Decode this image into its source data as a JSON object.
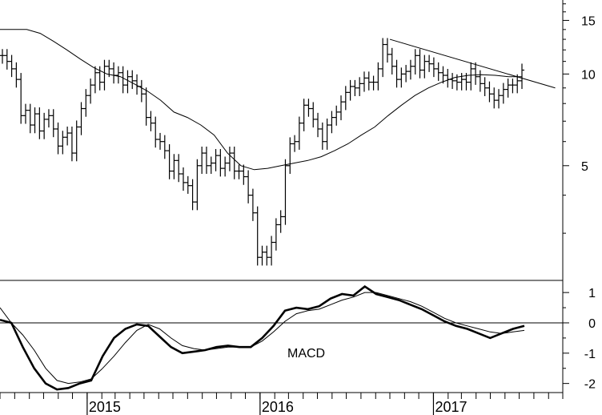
{
  "chart_data": [
    {
      "type": "ohlc",
      "panel": "price",
      "scale": "log",
      "ylim": [
        2.1,
        17.5
      ],
      "yticks": [
        5,
        10,
        15
      ],
      "ytick_labels": [
        "5",
        "10",
        "15"
      ],
      "xlim": [
        "2014-07-01",
        "2017-10-01"
      ],
      "xticks": [
        "2015-01-01",
        "2016-01-01",
        "2017-01-01"
      ],
      "xtick_labels": [
        "2015",
        "2016",
        "2017"
      ],
      "closes": [
        11.5,
        11.0,
        10.4,
        9.6,
        7.3,
        7.6,
        6.8,
        7.4,
        6.5,
        7.1,
        7.3,
        6.6,
        5.8,
        6.2,
        6.4,
        5.5,
        6.7,
        7.7,
        8.5,
        9.2,
        10.1,
        9.4,
        10.6,
        10.4,
        9.9,
        10.1,
        9.2,
        9.8,
        9.5,
        9.1,
        8.6,
        7.2,
        6.9,
        6.1,
        6.0,
        5.6,
        4.8,
        5.2,
        4.7,
        4.4,
        4.3,
        3.8,
        5.0,
        5.5,
        5.0,
        5.1,
        5.4,
        4.9,
        5.1,
        5.5,
        4.8,
        4.8,
        4.6,
        4.0,
        3.5,
        2.5,
        2.6,
        2.5,
        2.8,
        3.2,
        3.4,
        5.0,
        5.9,
        6.0,
        6.9,
        7.9,
        7.7,
        7.1,
        6.6,
        6.0,
        6.8,
        7.2,
        7.5,
        8.1,
        8.7,
        9.1,
        9.0,
        9.3,
        9.7,
        9.4,
        9.4,
        10.4,
        12.5,
        11.6,
        10.6,
        9.6,
        10.0,
        10.2,
        10.6,
        11.5,
        10.3,
        11.0,
        10.8,
        10.4,
        10.1,
        9.9,
        9.6,
        9.5,
        9.4,
        9.6,
        9.4,
        10.4,
        9.8,
        9.3,
        9.0,
        8.6,
        8.2,
        8.5,
        8.9,
        9.2,
        9.2,
        9.5,
        10.3
      ],
      "ma": [
        14.0,
        14.0,
        14.0,
        13.6,
        12.8,
        12.0,
        11.2,
        10.5,
        10.0,
        9.8,
        9.3,
        8.8,
        8.2,
        7.5,
        7.2,
        6.8,
        6.3,
        5.5,
        5.0,
        4.85,
        4.9,
        5.0,
        5.1,
        5.2,
        5.35,
        5.6,
        5.9,
        6.3,
        6.7,
        7.3,
        7.9,
        8.5,
        9.0,
        9.4,
        9.75,
        9.9,
        9.95,
        9.9,
        9.8,
        9.8
      ],
      "trendline": {
        "start": [
          "2016-10-01",
          13.0
        ],
        "end": [
          "2017-09-15",
          9.0
        ]
      }
    },
    {
      "type": "line",
      "panel": "macd",
      "label": "MACD",
      "ylim": [
        -2.3,
        1.4
      ],
      "yticks": [
        -2,
        -1,
        0,
        1
      ],
      "ytick_labels": [
        "-2",
        "-1",
        "0",
        "1"
      ],
      "series": [
        {
          "style": "thick",
          "values": [
            0.1,
            0.0,
            -0.8,
            -1.5,
            -2.0,
            -2.2,
            -2.15,
            -2.0,
            -1.9,
            -1.1,
            -0.5,
            -0.2,
            -0.05,
            -0.1,
            -0.45,
            -0.8,
            -1.0,
            -0.95,
            -0.9,
            -0.8,
            -0.75,
            -0.8,
            -0.8,
            -0.5,
            -0.1,
            0.4,
            0.5,
            0.45,
            0.55,
            0.8,
            0.95,
            0.9,
            1.2,
            0.95,
            0.85,
            0.75,
            0.6,
            0.45,
            0.25,
            0.05,
            -0.1,
            -0.2,
            -0.35,
            -0.5,
            -0.35,
            -0.2,
            -0.1
          ]
        },
        {
          "style": "thin",
          "values": [
            0.5,
            0.0,
            -0.4,
            -0.9,
            -1.5,
            -1.9,
            -2.0,
            -1.95,
            -1.85,
            -1.5,
            -1.1,
            -0.65,
            -0.25,
            -0.05,
            -0.2,
            -0.5,
            -0.75,
            -0.85,
            -0.9,
            -0.85,
            -0.8,
            -0.8,
            -0.8,
            -0.6,
            -0.3,
            0.05,
            0.3,
            0.4,
            0.45,
            0.6,
            0.75,
            0.85,
            1.0,
            1.0,
            0.9,
            0.8,
            0.7,
            0.55,
            0.35,
            0.15,
            0.0,
            -0.1,
            -0.2,
            -0.3,
            -0.35,
            -0.3,
            -0.25
          ]
        }
      ]
    }
  ]
}
